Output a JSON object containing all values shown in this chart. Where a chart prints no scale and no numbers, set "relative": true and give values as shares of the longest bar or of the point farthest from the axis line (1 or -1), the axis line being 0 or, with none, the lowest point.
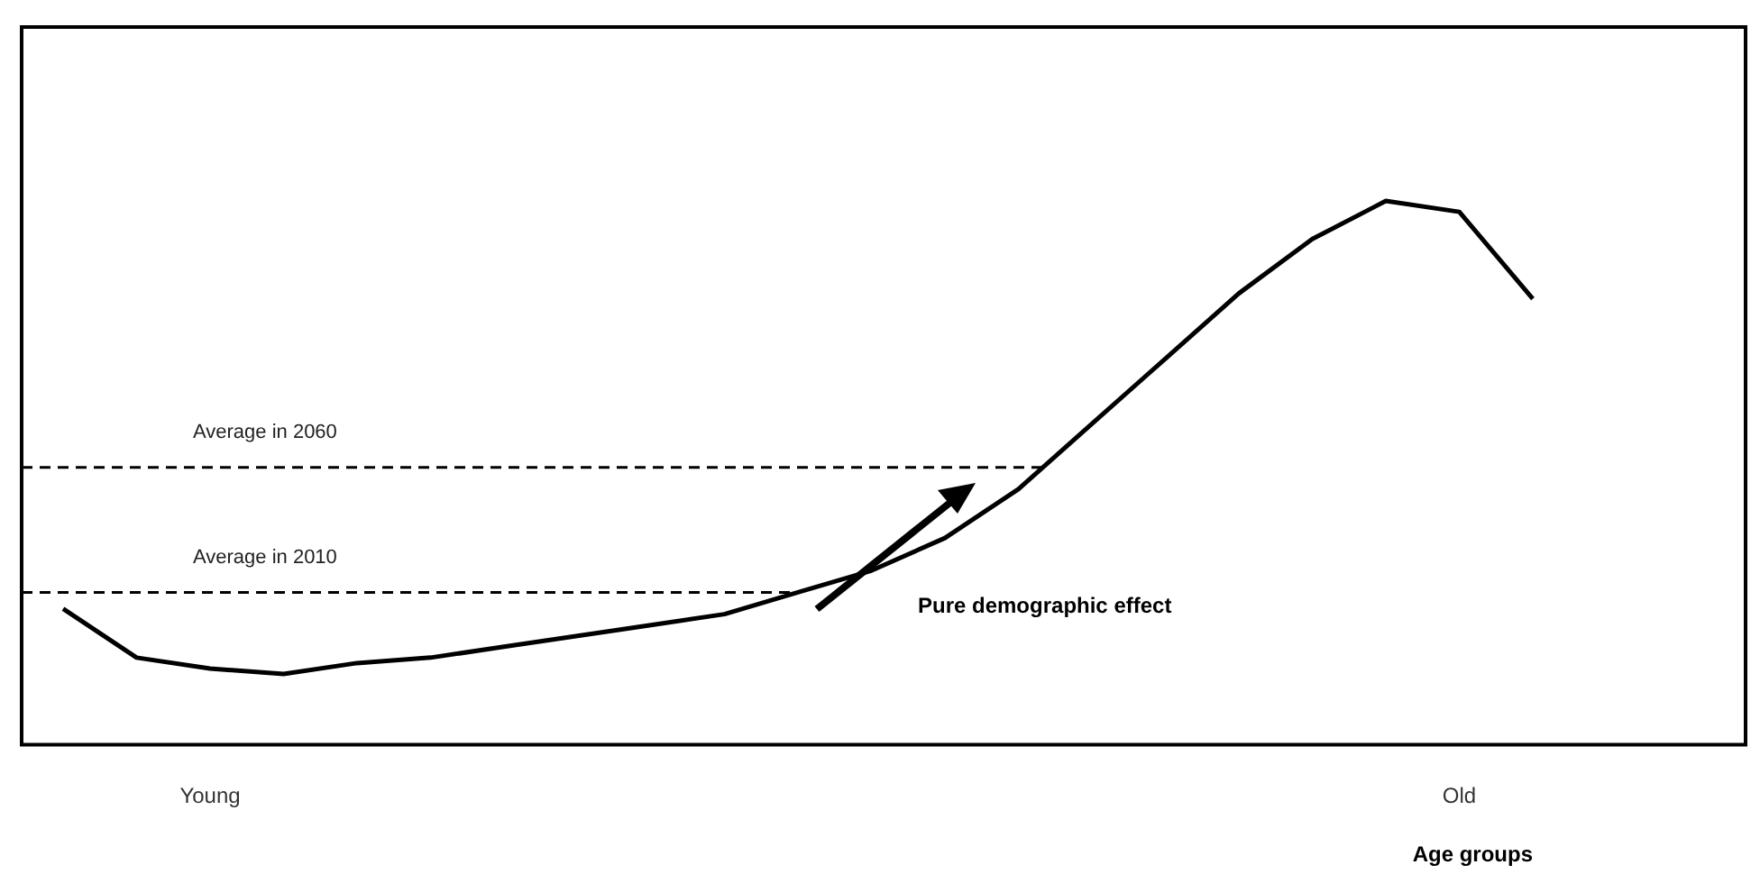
{
  "chart_data": {
    "type": "line",
    "relative": true,
    "xlabel": "Age groups",
    "categories": [
      null,
      null,
      "Young",
      null,
      null,
      null,
      null,
      null,
      null,
      null,
      null,
      null,
      null,
      null,
      null,
      null,
      null,
      null,
      null,
      "Old",
      null
    ],
    "series": [
      {
        "color": "#000000",
        "values": [
          0.25,
          0.16,
          0.14,
          0.13,
          0.15,
          0.16,
          0.18,
          0.2,
          0.22,
          0.24,
          0.28,
          0.32,
          0.38,
          0.47,
          0.59,
          0.71,
          0.83,
          0.93,
          1,
          0.98,
          0.82
        ]
      }
    ],
    "ref_lines": [
      {
        "axis": "y",
        "value": 0.51,
        "label": "Average in 2060",
        "color": "#000000",
        "line_style": "dashed"
      },
      {
        "axis": "y",
        "value": 0.28,
        "label": "Average in 2010",
        "color": "#000000",
        "line_style": "dashed"
      }
    ],
    "annotations": [
      "Pure demographic effect"
    ],
    "marker": "none",
    "line_style": "solid",
    "grid": false,
    "legend": false
  }
}
